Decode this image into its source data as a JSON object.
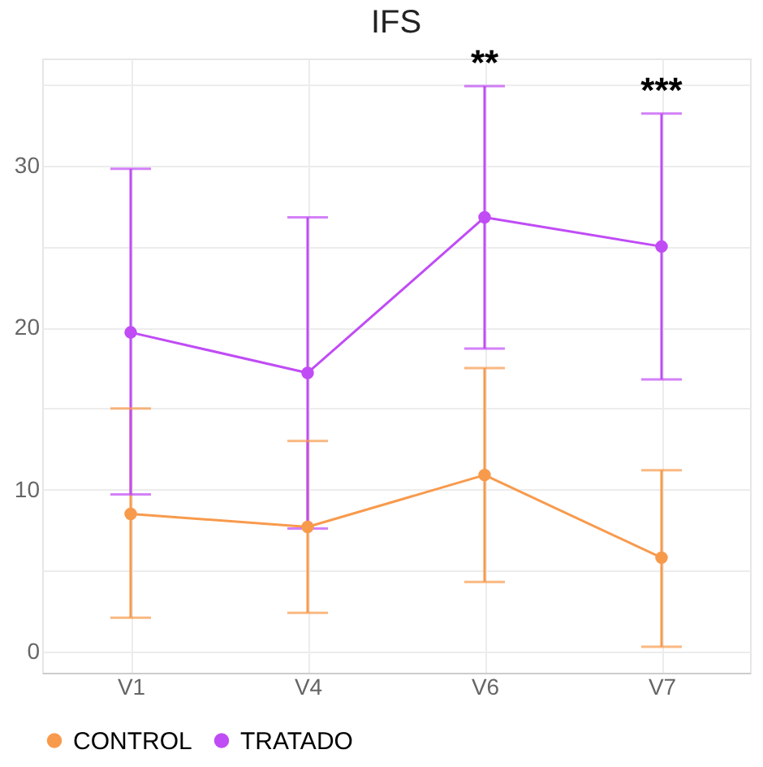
{
  "chart_data": {
    "type": "line",
    "title": "IFS",
    "categories": [
      "V1",
      "V4",
      "V6",
      "V7"
    ],
    "series": [
      {
        "name": "CONTROL",
        "color": "#f89a4c",
        "values": [
          8.5,
          7.7,
          10.9,
          5.8
        ],
        "errors": [
          [
            2.1,
            15.0
          ],
          [
            2.4,
            13.0
          ],
          [
            4.3,
            17.5
          ],
          [
            0.3,
            11.2
          ]
        ]
      },
      {
        "name": "TRATADO",
        "color": "#c04cf5",
        "values": [
          19.7,
          17.2,
          26.8,
          25.0
        ],
        "errors": [
          [
            9.7,
            29.8
          ],
          [
            7.6,
            26.8
          ],
          [
            18.7,
            34.9
          ],
          [
            16.8,
            33.2
          ]
        ]
      }
    ],
    "ylim": [
      -1.3,
      36.6
    ],
    "yticks": [
      0,
      {
        "value": 5,
        "label": null
      },
      10,
      {
        "value": 15,
        "label": null
      },
      20,
      {
        "value": 25,
        "label": null
      },
      30,
      {
        "value": 35,
        "label": null
      }
    ],
    "annotations": [
      {
        "text": "**",
        "x": "V6",
        "y": 34.9
      },
      {
        "text": "***",
        "x": "V7",
        "y": 33.2
      }
    ],
    "grid": true,
    "legend": "bottom",
    "marker": "circle",
    "line_style": "solid"
  }
}
